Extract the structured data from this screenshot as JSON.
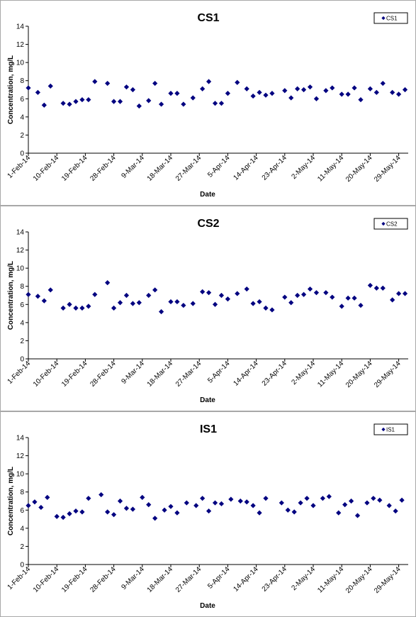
{
  "chart_data": [
    {
      "type": "scatter",
      "title": "CS1",
      "xlabel": "Date",
      "ylabel": "Concentration, mg/L",
      "ylim": [
        0,
        14
      ],
      "yticks": [
        "0",
        "2",
        "4",
        "6",
        "8",
        "10",
        "12",
        "14"
      ],
      "xlim": [
        "2014-02-01",
        "2014-06-01"
      ],
      "xtick_labels": [
        "1-Feb-14",
        "10-Feb-14",
        "19-Feb-14",
        "28-Feb-14",
        "9-Mar-14",
        "18-Mar-14",
        "27-Mar-14",
        "5-Apr-14",
        "14-Apr-14",
        "23-Apr-14",
        "2-May-14",
        "11-May-14",
        "20-May-14",
        "29-May-14"
      ],
      "xtick_dates": [
        "2014-02-01",
        "2014-02-10",
        "2014-02-19",
        "2014-02-28",
        "2014-03-09",
        "2014-03-18",
        "2014-03-27",
        "2014-04-05",
        "2014-04-14",
        "2014-04-23",
        "2014-05-02",
        "2014-05-11",
        "2014-05-20",
        "2014-05-29"
      ],
      "grid": false,
      "legend": "top-right",
      "marker_color": "#000080",
      "series": [
        {
          "name": "CS1",
          "points": [
            {
              "x": "2014-02-01",
              "y": 7.2
            },
            {
              "x": "2014-02-04",
              "y": 6.7
            },
            {
              "x": "2014-02-06",
              "y": 5.3
            },
            {
              "x": "2014-02-08",
              "y": 7.4
            },
            {
              "x": "2014-02-12",
              "y": 5.5
            },
            {
              "x": "2014-02-14",
              "y": 5.4
            },
            {
              "x": "2014-02-16",
              "y": 5.7
            },
            {
              "x": "2014-02-18",
              "y": 5.9
            },
            {
              "x": "2014-02-20",
              "y": 5.9
            },
            {
              "x": "2014-02-22",
              "y": 7.9
            },
            {
              "x": "2014-02-26",
              "y": 7.7
            },
            {
              "x": "2014-02-28",
              "y": 5.7
            },
            {
              "x": "2014-03-02",
              "y": 5.7
            },
            {
              "x": "2014-03-04",
              "y": 7.3
            },
            {
              "x": "2014-03-06",
              "y": 7.0
            },
            {
              "x": "2014-03-08",
              "y": 5.2
            },
            {
              "x": "2014-03-11",
              "y": 5.8
            },
            {
              "x": "2014-03-13",
              "y": 7.7
            },
            {
              "x": "2014-03-15",
              "y": 5.4
            },
            {
              "x": "2014-03-18",
              "y": 6.6
            },
            {
              "x": "2014-03-20",
              "y": 6.6
            },
            {
              "x": "2014-03-22",
              "y": 5.4
            },
            {
              "x": "2014-03-25",
              "y": 6.1
            },
            {
              "x": "2014-03-28",
              "y": 7.1
            },
            {
              "x": "2014-03-30",
              "y": 7.9
            },
            {
              "x": "2014-04-01",
              "y": 5.5
            },
            {
              "x": "2014-04-03",
              "y": 5.5
            },
            {
              "x": "2014-04-05",
              "y": 6.6
            },
            {
              "x": "2014-04-08",
              "y": 7.8
            },
            {
              "x": "2014-04-11",
              "y": 7.1
            },
            {
              "x": "2014-04-13",
              "y": 6.3
            },
            {
              "x": "2014-04-15",
              "y": 6.7
            },
            {
              "x": "2014-04-17",
              "y": 6.4
            },
            {
              "x": "2014-04-19",
              "y": 6.6
            },
            {
              "x": "2014-04-23",
              "y": 6.9
            },
            {
              "x": "2014-04-25",
              "y": 6.1
            },
            {
              "x": "2014-04-27",
              "y": 7.1
            },
            {
              "x": "2014-04-29",
              "y": 7.0
            },
            {
              "x": "2014-05-01",
              "y": 7.3
            },
            {
              "x": "2014-05-03",
              "y": 6.0
            },
            {
              "x": "2014-05-06",
              "y": 6.9
            },
            {
              "x": "2014-05-08",
              "y": 7.2
            },
            {
              "x": "2014-05-11",
              "y": 6.5
            },
            {
              "x": "2014-05-13",
              "y": 6.5
            },
            {
              "x": "2014-05-15",
              "y": 7.2
            },
            {
              "x": "2014-05-17",
              "y": 5.9
            },
            {
              "x": "2014-05-20",
              "y": 7.1
            },
            {
              "x": "2014-05-22",
              "y": 6.7
            },
            {
              "x": "2014-05-24",
              "y": 7.7
            },
            {
              "x": "2014-05-27",
              "y": 6.7
            },
            {
              "x": "2014-05-29",
              "y": 6.5
            },
            {
              "x": "2014-05-31",
              "y": 7.0
            }
          ]
        }
      ]
    },
    {
      "type": "scatter",
      "title": "CS2",
      "xlabel": "Date",
      "ylabel": "Concentration, mg/L",
      "ylim": [
        0,
        14
      ],
      "yticks": [
        "0",
        "2",
        "4",
        "6",
        "8",
        "10",
        "12",
        "14"
      ],
      "xlim": [
        "2014-02-01",
        "2014-06-01"
      ],
      "xtick_labels": [
        "1-Feb-14",
        "10-Feb-14",
        "19-Feb-14",
        "28-Feb-14",
        "9-Mar-14",
        "18-Mar-14",
        "27-Mar-14",
        "5-Apr-14",
        "14-Apr-14",
        "23-Apr-14",
        "2-May-14",
        "11-May-14",
        "20-May-14",
        "29-May-14"
      ],
      "xtick_dates": [
        "2014-02-01",
        "2014-02-10",
        "2014-02-19",
        "2014-02-28",
        "2014-03-09",
        "2014-03-18",
        "2014-03-27",
        "2014-04-05",
        "2014-04-14",
        "2014-04-23",
        "2014-05-02",
        "2014-05-11",
        "2014-05-20",
        "2014-05-29"
      ],
      "grid": false,
      "legend": "top-right",
      "marker_color": "#000080",
      "series": [
        {
          "name": "CS2",
          "points": [
            {
              "x": "2014-02-01",
              "y": 7.1
            },
            {
              "x": "2014-02-04",
              "y": 6.9
            },
            {
              "x": "2014-02-06",
              "y": 6.4
            },
            {
              "x": "2014-02-08",
              "y": 7.6
            },
            {
              "x": "2014-02-12",
              "y": 5.6
            },
            {
              "x": "2014-02-14",
              "y": 6.0
            },
            {
              "x": "2014-02-16",
              "y": 5.6
            },
            {
              "x": "2014-02-18",
              "y": 5.6
            },
            {
              "x": "2014-02-20",
              "y": 5.8
            },
            {
              "x": "2014-02-22",
              "y": 7.1
            },
            {
              "x": "2014-02-26",
              "y": 8.4
            },
            {
              "x": "2014-02-28",
              "y": 5.6
            },
            {
              "x": "2014-03-02",
              "y": 6.2
            },
            {
              "x": "2014-03-04",
              "y": 7.0
            },
            {
              "x": "2014-03-06",
              "y": 6.1
            },
            {
              "x": "2014-03-08",
              "y": 6.2
            },
            {
              "x": "2014-03-11",
              "y": 7.0
            },
            {
              "x": "2014-03-13",
              "y": 7.6
            },
            {
              "x": "2014-03-15",
              "y": 5.2
            },
            {
              "x": "2014-03-18",
              "y": 6.3
            },
            {
              "x": "2014-03-20",
              "y": 6.3
            },
            {
              "x": "2014-03-22",
              "y": 5.9
            },
            {
              "x": "2014-03-25",
              "y": 6.1
            },
            {
              "x": "2014-03-28",
              "y": 7.4
            },
            {
              "x": "2014-03-30",
              "y": 7.3
            },
            {
              "x": "2014-04-01",
              "y": 6.0
            },
            {
              "x": "2014-04-03",
              "y": 7.0
            },
            {
              "x": "2014-04-05",
              "y": 6.6
            },
            {
              "x": "2014-04-08",
              "y": 7.2
            },
            {
              "x": "2014-04-11",
              "y": 7.7
            },
            {
              "x": "2014-04-13",
              "y": 6.1
            },
            {
              "x": "2014-04-15",
              "y": 6.3
            },
            {
              "x": "2014-04-17",
              "y": 5.6
            },
            {
              "x": "2014-04-19",
              "y": 5.4
            },
            {
              "x": "2014-04-23",
              "y": 6.8
            },
            {
              "x": "2014-04-25",
              "y": 6.2
            },
            {
              "x": "2014-04-27",
              "y": 7.0
            },
            {
              "x": "2014-04-29",
              "y": 7.1
            },
            {
              "x": "2014-05-01",
              "y": 7.7
            },
            {
              "x": "2014-05-03",
              "y": 7.3
            },
            {
              "x": "2014-05-06",
              "y": 7.3
            },
            {
              "x": "2014-05-08",
              "y": 6.8
            },
            {
              "x": "2014-05-11",
              "y": 5.8
            },
            {
              "x": "2014-05-13",
              "y": 6.7
            },
            {
              "x": "2014-05-15",
              "y": 6.7
            },
            {
              "x": "2014-05-17",
              "y": 5.9
            },
            {
              "x": "2014-05-20",
              "y": 8.1
            },
            {
              "x": "2014-05-22",
              "y": 7.8
            },
            {
              "x": "2014-05-24",
              "y": 7.8
            },
            {
              "x": "2014-05-27",
              "y": 6.5
            },
            {
              "x": "2014-05-29",
              "y": 7.2
            },
            {
              "x": "2014-05-31",
              "y": 7.2
            }
          ]
        }
      ]
    },
    {
      "type": "scatter",
      "title": "IS1",
      "xlabel": "Date",
      "ylabel": "Concentration, mg/L",
      "ylim": [
        0,
        14
      ],
      "yticks": [
        "0",
        "2",
        "4",
        "6",
        "8",
        "10",
        "12",
        "14"
      ],
      "xlim": [
        "2014-02-01",
        "2014-06-01"
      ],
      "xtick_labels": [
        "1-Feb-14",
        "10-Feb-14",
        "19-Feb-14",
        "28-Feb-14",
        "9-Mar-14",
        "18-Mar-14",
        "27-Mar-14",
        "5-Apr-14",
        "14-Apr-14",
        "23-Apr-14",
        "2-May-14",
        "11-May-14",
        "20-May-14",
        "29-May-14"
      ],
      "xtick_dates": [
        "2014-02-01",
        "2014-02-10",
        "2014-02-19",
        "2014-02-28",
        "2014-03-09",
        "2014-03-18",
        "2014-03-27",
        "2014-04-05",
        "2014-04-14",
        "2014-04-23",
        "2014-05-02",
        "2014-05-11",
        "2014-05-20",
        "2014-05-29"
      ],
      "grid": false,
      "legend": "top-right",
      "marker_color": "#000080",
      "series": [
        {
          "name": "IS1",
          "points": [
            {
              "x": "2014-02-01",
              "y": 6.5
            },
            {
              "x": "2014-02-03",
              "y": 6.9
            },
            {
              "x": "2014-02-05",
              "y": 6.3
            },
            {
              "x": "2014-02-07",
              "y": 7.4
            },
            {
              "x": "2014-02-10",
              "y": 5.3
            },
            {
              "x": "2014-02-12",
              "y": 5.2
            },
            {
              "x": "2014-02-14",
              "y": 5.6
            },
            {
              "x": "2014-02-16",
              "y": 5.9
            },
            {
              "x": "2014-02-18",
              "y": 5.8
            },
            {
              "x": "2014-02-20",
              "y": 7.3
            },
            {
              "x": "2014-02-24",
              "y": 7.7
            },
            {
              "x": "2014-02-26",
              "y": 5.8
            },
            {
              "x": "2014-02-28",
              "y": 5.5
            },
            {
              "x": "2014-03-02",
              "y": 7.0
            },
            {
              "x": "2014-03-04",
              "y": 6.2
            },
            {
              "x": "2014-03-06",
              "y": 6.1
            },
            {
              "x": "2014-03-09",
              "y": 7.4
            },
            {
              "x": "2014-03-11",
              "y": 6.6
            },
            {
              "x": "2014-03-13",
              "y": 5.1
            },
            {
              "x": "2014-03-16",
              "y": 6.0
            },
            {
              "x": "2014-03-18",
              "y": 6.4
            },
            {
              "x": "2014-03-20",
              "y": 5.7
            },
            {
              "x": "2014-03-23",
              "y": 6.8
            },
            {
              "x": "2014-03-26",
              "y": 6.5
            },
            {
              "x": "2014-03-28",
              "y": 7.3
            },
            {
              "x": "2014-03-30",
              "y": 5.9
            },
            {
              "x": "2014-04-01",
              "y": 6.8
            },
            {
              "x": "2014-04-03",
              "y": 6.7
            },
            {
              "x": "2014-04-06",
              "y": 7.2
            },
            {
              "x": "2014-04-09",
              "y": 7.0
            },
            {
              "x": "2014-04-11",
              "y": 6.9
            },
            {
              "x": "2014-04-13",
              "y": 6.5
            },
            {
              "x": "2014-04-15",
              "y": 5.7
            },
            {
              "x": "2014-04-17",
              "y": 7.3
            },
            {
              "x": "2014-04-22",
              "y": 6.8
            },
            {
              "x": "2014-04-24",
              "y": 6.0
            },
            {
              "x": "2014-04-26",
              "y": 5.8
            },
            {
              "x": "2014-04-28",
              "y": 6.8
            },
            {
              "x": "2014-04-30",
              "y": 7.3
            },
            {
              "x": "2014-05-02",
              "y": 6.5
            },
            {
              "x": "2014-05-05",
              "y": 7.3
            },
            {
              "x": "2014-05-07",
              "y": 7.5
            },
            {
              "x": "2014-05-10",
              "y": 5.7
            },
            {
              "x": "2014-05-12",
              "y": 6.6
            },
            {
              "x": "2014-05-14",
              "y": 7.0
            },
            {
              "x": "2014-05-16",
              "y": 5.4
            },
            {
              "x": "2014-05-19",
              "y": 6.8
            },
            {
              "x": "2014-05-21",
              "y": 7.3
            },
            {
              "x": "2014-05-23",
              "y": 7.1
            },
            {
              "x": "2014-05-26",
              "y": 6.5
            },
            {
              "x": "2014-05-28",
              "y": 5.9
            },
            {
              "x": "2014-05-30",
              "y": 7.1
            }
          ]
        }
      ]
    }
  ]
}
